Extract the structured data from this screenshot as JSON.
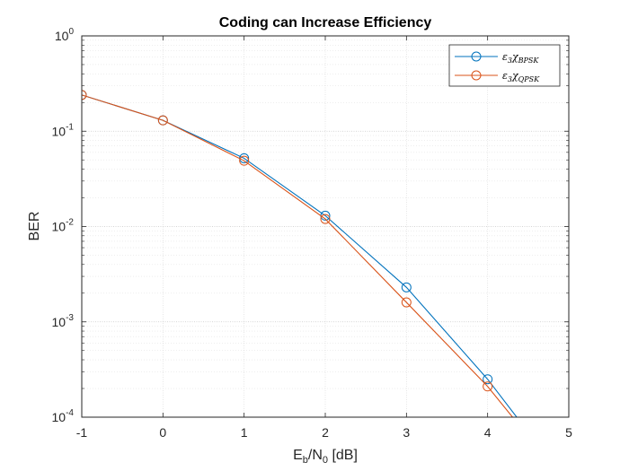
{
  "chart_data": {
    "type": "line",
    "title": "Coding can Increase Efficiency",
    "xlabel": {
      "main": "E",
      "sub1": "b",
      "mid": "/N",
      "sub2": "0",
      "tail": " [dB]"
    },
    "ylabel": "BER",
    "xlim": [
      -1,
      5
    ],
    "ylim": [
      0.0001,
      1
    ],
    "yscale": "log",
    "grid": true,
    "minor_grid": true,
    "legend_placement": "top-right",
    "xticks": [
      "-1",
      "0",
      "1",
      "2",
      "3",
      "4",
      "5"
    ],
    "yticks": [
      {
        "base": "10",
        "exp": "0"
      },
      {
        "base": "10",
        "exp": "-1"
      },
      {
        "base": "10",
        "exp": "-2"
      },
      {
        "base": "10",
        "exp": "-3"
      },
      {
        "base": "10",
        "exp": "-4"
      }
    ],
    "series": [
      {
        "name": {
          "main": "ε",
          "sub1": "3",
          "mid": "χ",
          "sub2": "BPSK"
        },
        "color": "#0072BD",
        "x": [
          -1,
          0,
          1,
          2,
          3,
          4,
          4.4
        ],
        "y": [
          0.24,
          0.13,
          0.052,
          0.013,
          0.0023,
          0.00025,
          9e-05
        ],
        "markers": [
          true,
          true,
          true,
          true,
          true,
          true,
          false
        ]
      },
      {
        "name": {
          "main": "ε",
          "sub1": "3",
          "mid": "χ",
          "sub2": "QPSK"
        },
        "color": "#D95319",
        "x": [
          -1,
          0,
          1,
          2,
          3,
          4,
          4.4
        ],
        "y": [
          0.24,
          0.13,
          0.049,
          0.012,
          0.0016,
          0.00021,
          8e-05
        ],
        "markers": [
          true,
          true,
          true,
          true,
          true,
          true,
          false
        ]
      }
    ]
  }
}
